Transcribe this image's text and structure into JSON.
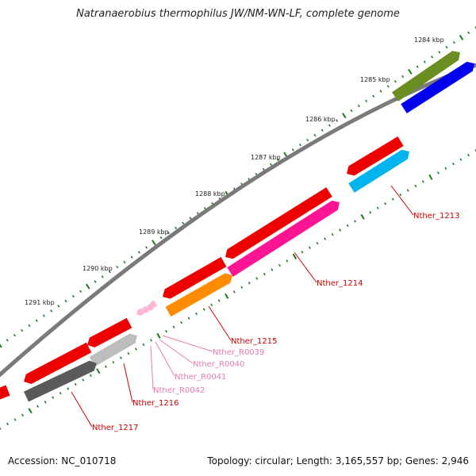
{
  "title": "Natranaerobius thermophilus JW/NM-WN-LF, complete genome",
  "footer": {
    "accession": "Accession: NC_010718",
    "summary": "Topology: circular; Length: 3,165,557 bp; Genes: 2,946"
  },
  "colors": {
    "backbone": "#7a7a7a",
    "tick": "#1f7a1f",
    "gene_label": "#cc0000",
    "rna_label": "#e87ab0"
  },
  "kbp_labels": [
    "1284 kbp",
    "1285 kbp",
    "1286 kbp",
    "1287 kbp",
    "1288 kbp",
    "1289 kbp",
    "1290 kbp",
    "1291 kbp"
  ],
  "features": [
    {
      "label": "",
      "color": "#6b8e23",
      "strand": "forward"
    },
    {
      "label": "",
      "color": "#0000ee",
      "strand": "forward"
    },
    {
      "label": "",
      "color": "#ee0000",
      "strand": "reverse"
    },
    {
      "label": "Nther_1213",
      "color": "#00b4f0",
      "strand": "forward"
    },
    {
      "label": "",
      "color": "#ee0000",
      "strand": "reverse"
    },
    {
      "label": "Nther_1214",
      "color": "#ff1493",
      "strand": "forward"
    },
    {
      "label": "",
      "color": "#ee0000",
      "strand": "reverse"
    },
    {
      "label": "Nther_1215",
      "color": "#ff8c00",
      "strand": "forward"
    },
    {
      "label": "Nther_R0039",
      "color": "#ffb6d9",
      "strand": "reverse"
    },
    {
      "label": "Nther_R0040",
      "color": "#ffb6d9",
      "strand": "reverse"
    },
    {
      "label": "Nther_R0041",
      "color": "#ffb6d9",
      "strand": "reverse"
    },
    {
      "label": "Nther_R0042",
      "color": "#ffb6d9",
      "strand": "reverse"
    },
    {
      "label": "",
      "color": "#ee0000",
      "strand": "reverse"
    },
    {
      "label": "Nther_1216",
      "color": "#bdbdbd",
      "strand": "forward"
    },
    {
      "label": "",
      "color": "#ee0000",
      "strand": "reverse"
    },
    {
      "label": "Nther_1217",
      "color": "#5a5a5a",
      "strand": "forward"
    },
    {
      "label": "",
      "color": "#ee0000",
      "strand": "reverse"
    }
  ]
}
